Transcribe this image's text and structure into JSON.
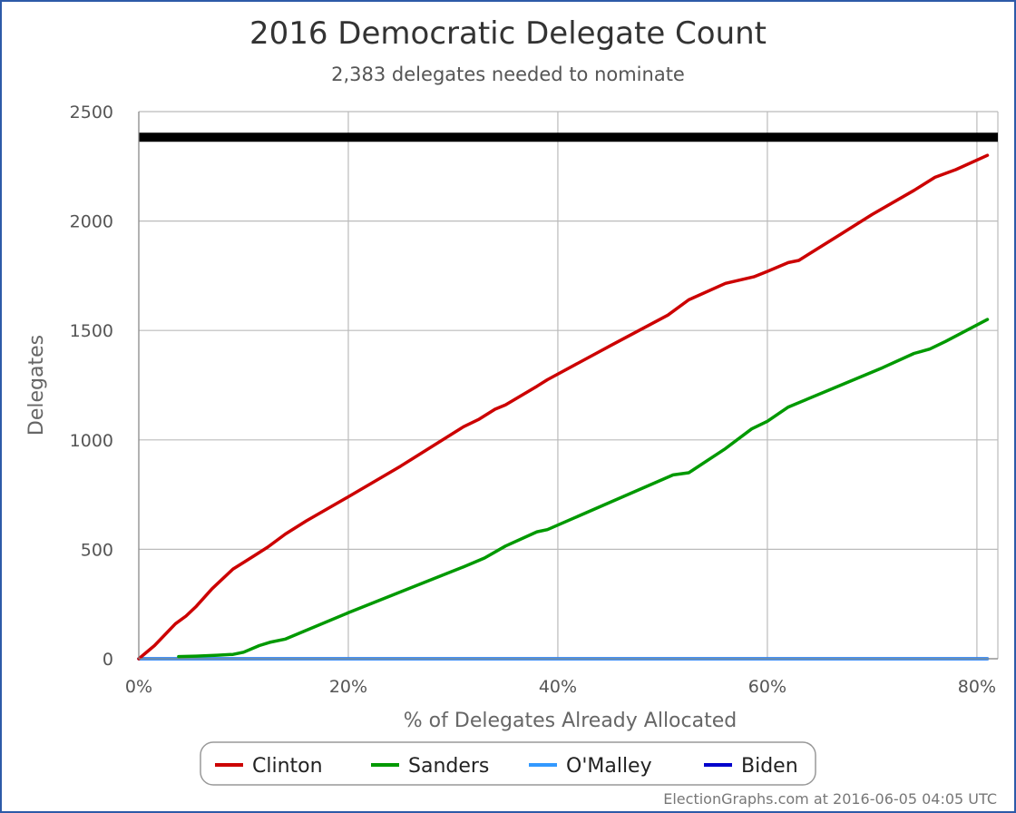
{
  "chart_data": {
    "type": "line",
    "title": "2016 Democratic Delegate Count",
    "subtitle": "2,383 delegates needed to nominate",
    "xlabel": "% of Delegates Already Allocated",
    "ylabel": "Delegates",
    "xlim": [
      0,
      82
    ],
    "ylim": [
      0,
      2500
    ],
    "x_ticks": [
      0,
      20,
      40,
      60,
      80
    ],
    "x_tick_labels": [
      "0%",
      "20%",
      "40%",
      "60%",
      "80%"
    ],
    "y_ticks": [
      0,
      500,
      1000,
      1500,
      2000,
      2500
    ],
    "y_tick_labels": [
      "0",
      "500",
      "1000",
      "1500",
      "2000",
      "2500"
    ],
    "grid": true,
    "threshold": {
      "value": 2383,
      "color": "#000000"
    },
    "legend": "bottom",
    "series": [
      {
        "name": "Clinton",
        "color": "#cc0000",
        "points": [
          [
            0,
            0
          ],
          [
            1.5,
            60
          ],
          [
            3.5,
            160
          ],
          [
            4.5,
            195
          ],
          [
            5.5,
            240
          ],
          [
            7,
            320
          ],
          [
            9,
            410
          ],
          [
            10,
            440
          ],
          [
            11,
            470
          ],
          [
            12.3,
            510
          ],
          [
            14,
            570
          ],
          [
            16,
            630
          ],
          [
            20,
            740
          ],
          [
            25,
            880
          ],
          [
            31,
            1060
          ],
          [
            32.5,
            1095
          ],
          [
            34,
            1140
          ],
          [
            35,
            1160
          ],
          [
            38,
            1245
          ],
          [
            39,
            1275
          ],
          [
            45,
            1430
          ],
          [
            50.5,
            1570
          ],
          [
            52.5,
            1640
          ],
          [
            56,
            1715
          ],
          [
            58.7,
            1745
          ],
          [
            60,
            1770
          ],
          [
            62,
            1810
          ],
          [
            63,
            1820
          ],
          [
            67,
            1940
          ],
          [
            70,
            2030
          ],
          [
            74,
            2140
          ],
          [
            76,
            2200
          ],
          [
            78,
            2235
          ],
          [
            81,
            2300
          ]
        ]
      },
      {
        "name": "Sanders",
        "color": "#009900",
        "points": [
          [
            3.8,
            10
          ],
          [
            5.5,
            12
          ],
          [
            7.5,
            16
          ],
          [
            9,
            20
          ],
          [
            10,
            30
          ],
          [
            11.5,
            60
          ],
          [
            12.5,
            75
          ],
          [
            14,
            90
          ],
          [
            20,
            210
          ],
          [
            26,
            325
          ],
          [
            31,
            420
          ],
          [
            33,
            460
          ],
          [
            35,
            515
          ],
          [
            38,
            580
          ],
          [
            39,
            590
          ],
          [
            45,
            715
          ],
          [
            51,
            840
          ],
          [
            52.5,
            850
          ],
          [
            56,
            960
          ],
          [
            58.5,
            1050
          ],
          [
            60,
            1085
          ],
          [
            62,
            1150
          ],
          [
            67,
            1250
          ],
          [
            71,
            1330
          ],
          [
            74,
            1395
          ],
          [
            75.5,
            1415
          ],
          [
            77,
            1450
          ],
          [
            79,
            1500
          ],
          [
            81,
            1550
          ]
        ]
      },
      {
        "name": "O'Malley",
        "color": "#3399ff",
        "points": [
          [
            0,
            0
          ],
          [
            81,
            0
          ]
        ]
      },
      {
        "name": "Biden",
        "color": "#0000cc",
        "points": [
          [
            0,
            0
          ],
          [
            81,
            0
          ]
        ]
      }
    ]
  },
  "credit": "ElectionGraphs.com at 2016-06-05 04:05 UTC"
}
